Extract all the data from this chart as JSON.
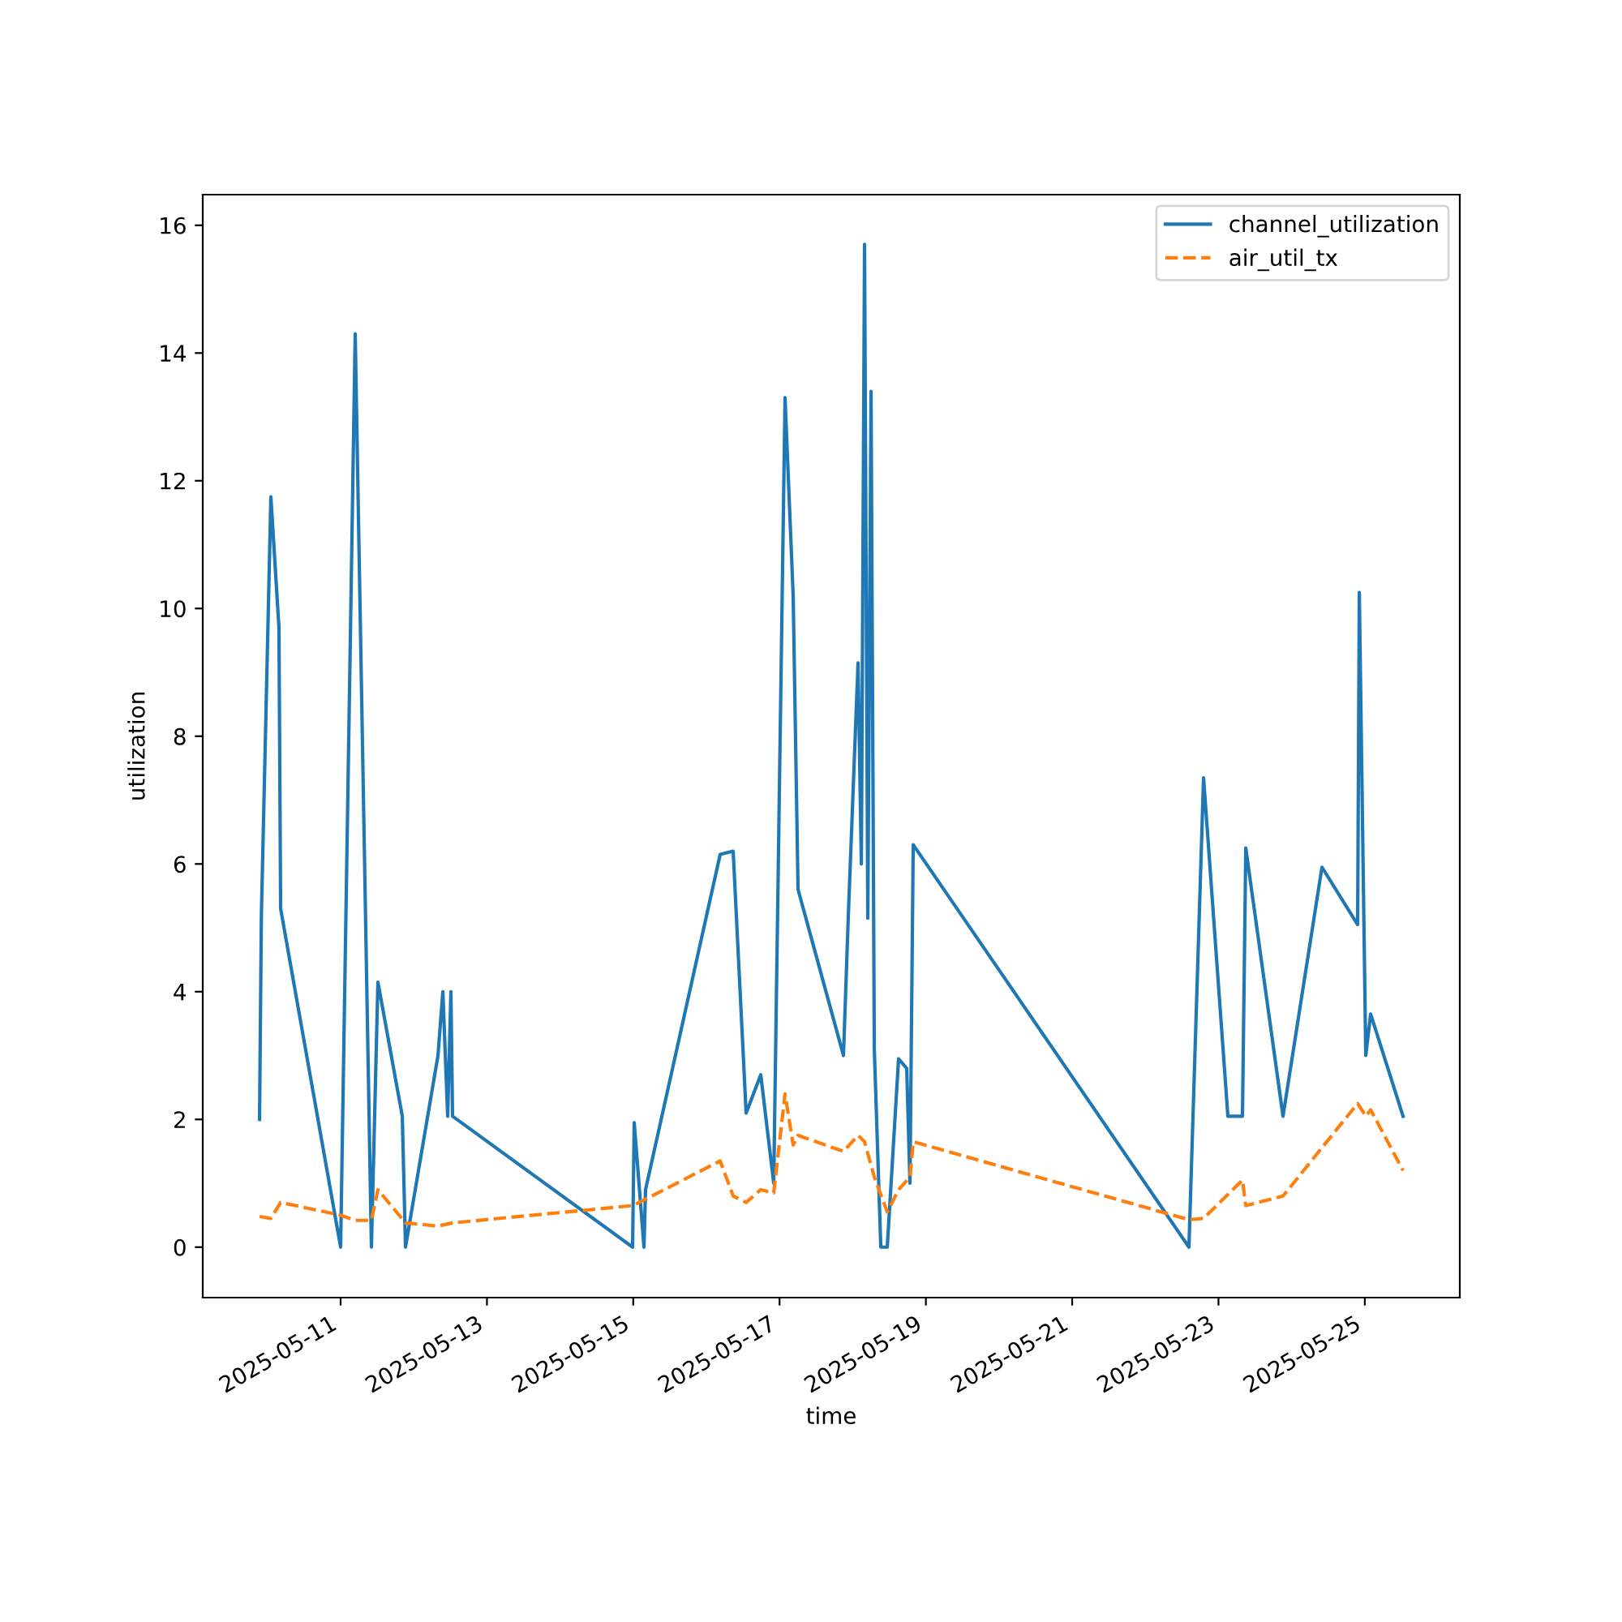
{
  "chart_data": {
    "type": "line",
    "xlabel": "time",
    "ylabel": "utilization",
    "xlim": [
      "2025-05-09T02:46",
      "2025-05-26T07:10"
    ],
    "ylim": [
      -0.79,
      16.48
    ],
    "xticks": [
      "2025-05-11",
      "2025-05-13",
      "2025-05-15",
      "2025-05-17",
      "2025-05-19",
      "2025-05-21",
      "2025-05-23",
      "2025-05-25"
    ],
    "yticks": [
      0,
      2,
      4,
      6,
      8,
      10,
      12,
      14,
      16
    ],
    "grid": false,
    "legend": "top right",
    "marker": "none",
    "series": [
      {
        "name": "channel_utilization",
        "color": "#1f77b4",
        "line_style": "solid",
        "x": [
          "2025-05-09T21:24",
          "2025-05-09T22:00",
          "2025-05-10T01:07",
          "2025-05-10T03:46",
          "2025-05-10T04:19",
          "2025-05-11T00:00",
          "2025-05-11T04:47",
          "2025-05-11T10:06",
          "2025-05-11T12:14",
          "2025-05-11T20:14",
          "2025-05-11T21:17",
          "2025-05-12T07:56",
          "2025-05-12T09:32",
          "2025-05-12T11:07",
          "2025-05-12T12:11",
          "2025-05-12T12:43",
          "2025-05-14T23:47",
          "2025-05-15T00:19",
          "2025-05-15T03:31",
          "2025-05-15T04:02",
          "2025-05-16T04:31",
          "2025-05-16T08:47",
          "2025-05-16T13:02",
          "2025-05-16T17:50",
          "2025-05-16T22:05",
          "2025-05-17T01:48",
          "2025-05-17T04:28",
          "2025-05-17T06:04",
          "2025-05-17T20:58",
          "2025-05-17T22:34",
          "2025-05-18T01:45",
          "2025-05-18T02:50",
          "2025-05-18T03:53",
          "2025-05-18T04:57",
          "2025-05-18T06:01",
          "2025-05-18T07:05",
          "2025-05-18T09:13",
          "2025-05-18T11:20",
          "2025-05-18T15:03",
          "2025-05-18T17:43",
          "2025-05-18T18:47",
          "2025-05-18T19:51",
          "2025-05-22T14:18",
          "2025-05-22T19:06",
          "2025-05-23T03:05",
          "2025-05-23T07:52",
          "2025-05-23T08:57",
          "2025-05-23T21:10",
          "2025-05-24T09:57",
          "2025-05-24T21:39",
          "2025-05-24T22:12",
          "2025-05-25T00:19",
          "2025-05-25T01:55",
          "2025-05-25T12:33"
        ],
        "values": [
          2.0,
          5.2,
          11.75,
          9.7,
          5.3,
          0,
          14.3,
          0,
          4.15,
          2.05,
          0,
          3.0,
          4.0,
          2.05,
          4.0,
          2.05,
          0,
          1.95,
          0,
          0.9,
          6.15,
          6.2,
          2.1,
          2.7,
          1.0,
          13.3,
          10.2,
          5.6,
          3.0,
          5.2,
          9.15,
          6.0,
          15.7,
          5.15,
          13.4,
          3.1,
          0,
          0,
          2.95,
          2.8,
          1.0,
          6.3,
          0,
          7.35,
          2.05,
          2.05,
          6.25,
          2.05,
          5.95,
          5.05,
          10.25,
          3.0,
          3.65,
          2.05
        ]
      },
      {
        "name": "air_util_tx",
        "color": "#ff7f0e",
        "line_style": "dashed",
        "x": [
          "2025-05-09T21:24",
          "2025-05-10T01:07",
          "2025-05-10T04:19",
          "2025-05-11T00:00",
          "2025-05-11T04:47",
          "2025-05-11T10:06",
          "2025-05-11T12:14",
          "2025-05-11T21:17",
          "2025-05-12T07:56",
          "2025-05-12T12:43",
          "2025-05-14T23:47",
          "2025-05-15T04:02",
          "2025-05-16T04:31",
          "2025-05-16T08:47",
          "2025-05-16T13:02",
          "2025-05-16T17:50",
          "2025-05-16T22:05",
          "2025-05-17T01:48",
          "2025-05-17T04:28",
          "2025-05-17T06:04",
          "2025-05-17T20:58",
          "2025-05-18T01:45",
          "2025-05-18T03:53",
          "2025-05-18T07:05",
          "2025-05-18T11:20",
          "2025-05-18T15:03",
          "2025-05-18T18:47",
          "2025-05-18T19:51",
          "2025-05-22T14:18",
          "2025-05-22T19:06",
          "2025-05-23T07:52",
          "2025-05-23T08:57",
          "2025-05-23T21:10",
          "2025-05-24T21:39",
          "2025-05-25T00:19",
          "2025-05-25T01:55",
          "2025-05-25T12:33"
        ],
        "values": [
          0.48,
          0.45,
          0.7,
          0.5,
          0.42,
          0.42,
          0.9,
          0.38,
          0.33,
          0.38,
          0.65,
          0.75,
          1.35,
          0.8,
          0.7,
          0.9,
          0.85,
          2.4,
          1.6,
          1.75,
          1.5,
          1.75,
          1.65,
          1.1,
          0.55,
          0.9,
          1.1,
          1.65,
          0.43,
          0.45,
          1.05,
          0.65,
          0.8,
          2.25,
          2.05,
          2.15,
          1.2
        ]
      }
    ]
  }
}
